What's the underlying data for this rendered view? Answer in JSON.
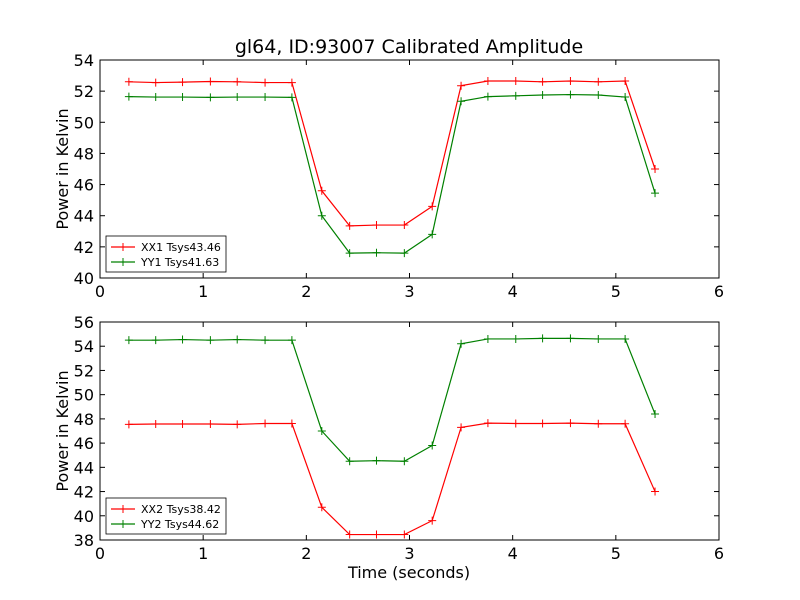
{
  "chart_data": [
    {
      "type": "line",
      "title": "gl64, ID:93007 Calibrated Amplitude",
      "xlabel": "",
      "ylabel": "Power in Kelvin",
      "xlim": [
        0,
        6
      ],
      "ylim": [
        40,
        54
      ],
      "xticks": [
        "0",
        "1",
        "2",
        "3",
        "4",
        "5",
        "6"
      ],
      "yticks": [
        "40",
        "42",
        "44",
        "46",
        "48",
        "50",
        "52",
        "54"
      ],
      "legend_position": "lower-left",
      "grid": false,
      "x": [
        0.28,
        0.54,
        0.8,
        1.07,
        1.33,
        1.6,
        1.86,
        2.15,
        2.42,
        2.68,
        2.95,
        3.22,
        3.5,
        3.76,
        4.03,
        4.29,
        4.56,
        4.83,
        5.09,
        5.38
      ],
      "series": [
        {
          "name": "XX1 Tsys43.46",
          "color": "#ff0000",
          "values": [
            52.6,
            52.55,
            52.58,
            52.62,
            52.6,
            52.55,
            52.55,
            45.6,
            43.35,
            43.4,
            43.4,
            44.6,
            52.35,
            52.65,
            52.65,
            52.6,
            52.65,
            52.6,
            52.65,
            47.0
          ]
        },
        {
          "name": "YY1 Tsys41.63",
          "color": "#008000",
          "values": [
            51.65,
            51.62,
            51.62,
            51.6,
            51.62,
            51.62,
            51.6,
            44.0,
            41.6,
            41.62,
            41.6,
            42.8,
            51.35,
            51.65,
            51.7,
            51.75,
            51.78,
            51.75,
            51.62,
            45.45
          ]
        }
      ]
    },
    {
      "type": "line",
      "title": "",
      "xlabel": "Time (seconds)",
      "ylabel": "Power in Kelvin",
      "xlim": [
        0,
        6
      ],
      "ylim": [
        38,
        56
      ],
      "xticks": [
        "0",
        "1",
        "2",
        "3",
        "4",
        "5",
        "6"
      ],
      "yticks": [
        "38",
        "40",
        "42",
        "44",
        "46",
        "48",
        "50",
        "52",
        "54",
        "56"
      ],
      "legend_position": "lower-left",
      "grid": false,
      "x": [
        0.28,
        0.54,
        0.8,
        1.07,
        1.33,
        1.6,
        1.86,
        2.15,
        2.42,
        2.68,
        2.95,
        3.22,
        3.5,
        3.76,
        4.03,
        4.29,
        4.56,
        4.83,
        5.09,
        5.38
      ],
      "series": [
        {
          "name": "XX2 Tsys38.42",
          "color": "#ff0000",
          "values": [
            47.55,
            47.58,
            47.58,
            47.58,
            47.55,
            47.62,
            47.62,
            40.7,
            38.45,
            38.45,
            38.45,
            39.6,
            47.3,
            47.65,
            47.62,
            47.62,
            47.65,
            47.6,
            47.6,
            42.0
          ]
        },
        {
          "name": "YY2 Tsys44.62",
          "color": "#008000",
          "values": [
            54.5,
            54.5,
            54.55,
            54.5,
            54.55,
            54.5,
            54.5,
            47.0,
            44.5,
            44.55,
            44.5,
            45.8,
            54.2,
            54.6,
            54.6,
            54.65,
            54.65,
            54.6,
            54.6,
            48.4
          ]
        }
      ]
    }
  ]
}
